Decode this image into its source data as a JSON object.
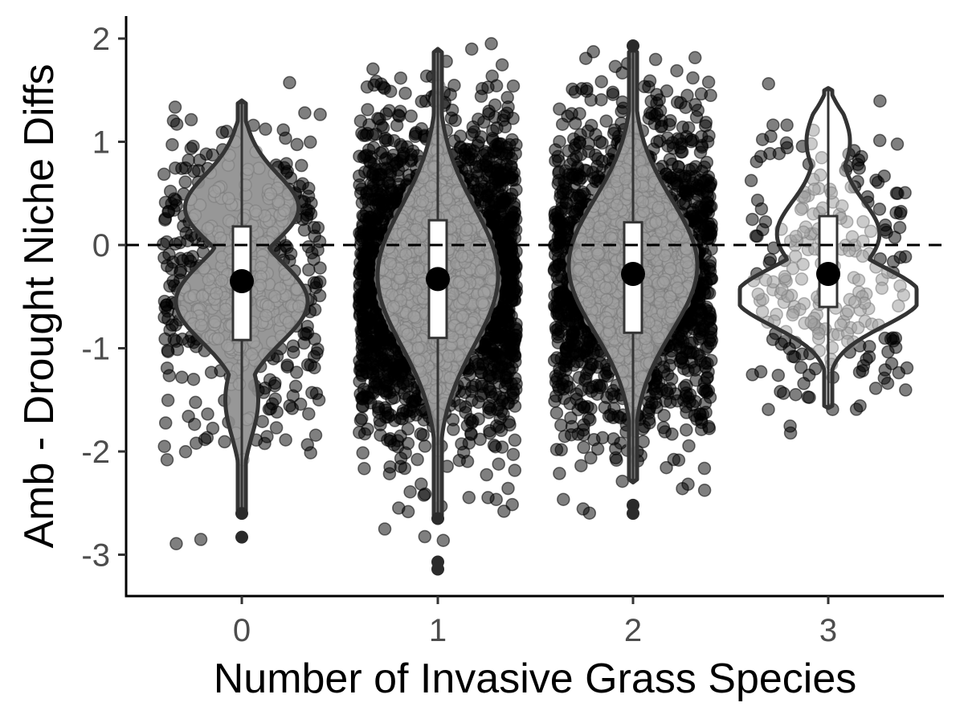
{
  "chart_data": {
    "type": "violin",
    "xlabel": "Number of Invasive Grass Species",
    "ylabel": "Amb - Drought Niche Diffs",
    "x_categories": [
      "0",
      "1",
      "2",
      "3"
    ],
    "y_ticks": [
      2,
      1,
      0,
      -1,
      -2,
      -3
    ],
    "y_tick_labels": [
      "2",
      "1",
      "0",
      "-1",
      "-2",
      "-3"
    ],
    "ylim": [
      -3.4,
      2.2
    ],
    "reference_line": {
      "y": 0,
      "style": "dashed"
    },
    "grid": false,
    "groups": [
      {
        "category": "0",
        "n_points_approx": 500,
        "median": -0.35,
        "q1": -0.92,
        "q3": 0.18,
        "whisker_low": -2.6,
        "whisker_high": 1.4,
        "outliers": [
          -2.6,
          -2.83
        ],
        "violin_min": -2.6,
        "violin_max": 1.4
      },
      {
        "category": "1",
        "n_points_approx": 2500,
        "median": -0.33,
        "q1": -0.9,
        "q3": 0.24,
        "whisker_low": -2.65,
        "whisker_high": 1.9,
        "outliers": [
          -2.65,
          -3.07,
          -3.14
        ],
        "violin_min": -2.65,
        "violin_max": 1.9
      },
      {
        "category": "2",
        "n_points_approx": 1800,
        "median": -0.28,
        "q1": -0.85,
        "q3": 0.22,
        "whisker_low": -2.3,
        "whisker_high": 1.93,
        "outliers": [
          -2.52,
          -2.6,
          1.93
        ],
        "violin_min": -2.3,
        "violin_max": 1.9
      },
      {
        "category": "3",
        "n_points_approx": 250,
        "median": -0.28,
        "q1": -0.6,
        "q3": 0.28,
        "whisker_low": -1.58,
        "whisker_high": 1.52,
        "outliers": [],
        "violin_min": -1.58,
        "violin_max": 1.52
      }
    ],
    "colors": {
      "points_outside": "#000000",
      "points_inside": "#a0a0a0",
      "violin_fill": "#8c8c8c",
      "violin_outline": "#333333",
      "box_fill": "#ffffff",
      "median_dot": "#000000"
    }
  }
}
